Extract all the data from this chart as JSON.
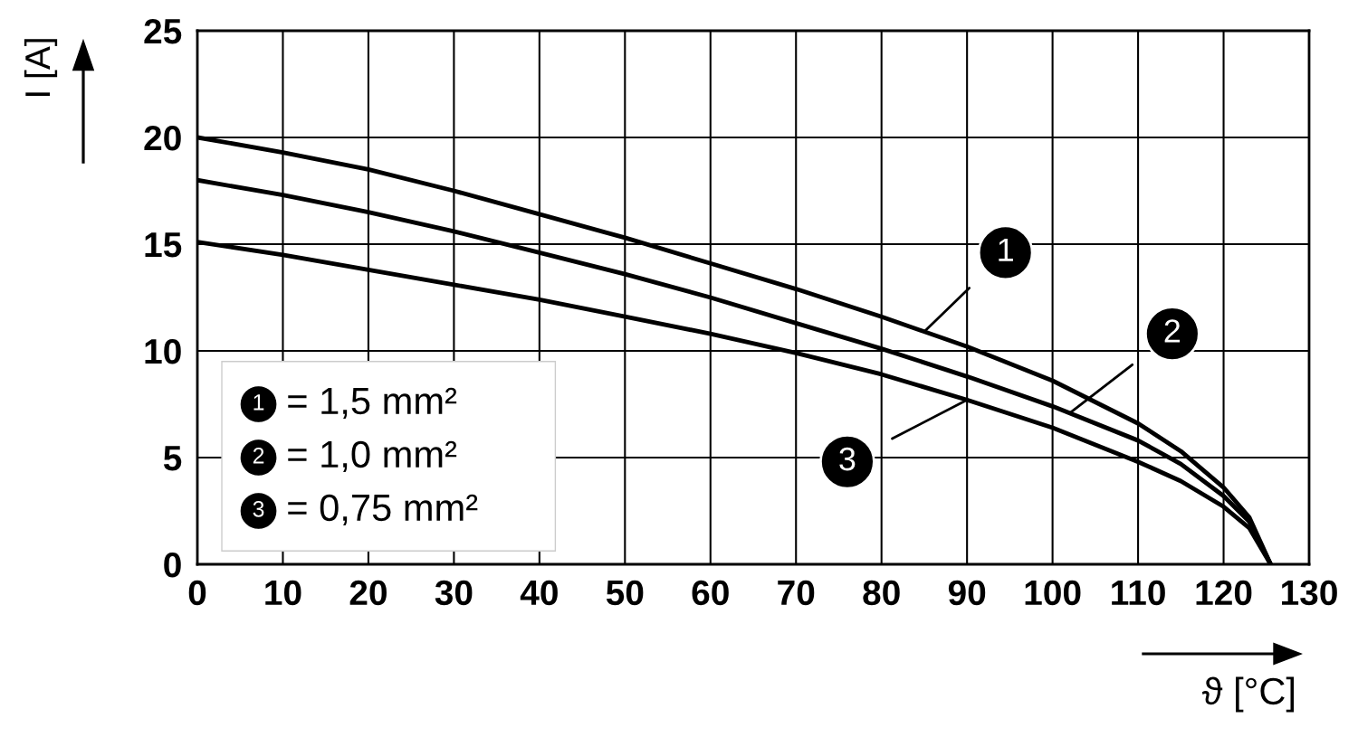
{
  "chart_data": {
    "type": "line",
    "xlabel": "ϑ [°C]",
    "ylabel": "I [A]",
    "xlim": [
      0,
      130
    ],
    "ylim": [
      0,
      25
    ],
    "xticks": [
      0,
      10,
      20,
      30,
      40,
      50,
      60,
      70,
      80,
      90,
      100,
      110,
      120,
      130
    ],
    "yticks": [
      0,
      5,
      10,
      15,
      20,
      25
    ],
    "grid": true,
    "legend": "bottom left",
    "marker": "none",
    "line_style": "solid",
    "series": [
      {
        "name": "1",
        "color": "#000000",
        "x": [
          0,
          10,
          20,
          30,
          40,
          50,
          60,
          70,
          80,
          90,
          100,
          110,
          115,
          120,
          123,
          125.5
        ],
        "values": [
          20,
          19.3,
          18.5,
          17.5,
          16.4,
          15.3,
          14.1,
          12.9,
          11.6,
          10.2,
          8.6,
          6.6,
          5.3,
          3.6,
          2.2,
          0
        ]
      },
      {
        "name": "2",
        "color": "#000000",
        "x": [
          0,
          10,
          20,
          30,
          40,
          50,
          60,
          70,
          80,
          90,
          100,
          110,
          115,
          120,
          123,
          125.5
        ],
        "values": [
          18,
          17.3,
          16.5,
          15.6,
          14.6,
          13.6,
          12.5,
          11.3,
          10.1,
          8.8,
          7.4,
          5.8,
          4.7,
          3.2,
          2.0,
          0
        ]
      },
      {
        "name": "3",
        "color": "#000000",
        "x": [
          0,
          10,
          20,
          30,
          40,
          50,
          60,
          70,
          80,
          90,
          100,
          110,
          115,
          120,
          123,
          125.5
        ],
        "values": [
          15.1,
          14.5,
          13.8,
          13.1,
          12.4,
          11.6,
          10.8,
          9.9,
          8.9,
          7.7,
          6.4,
          4.8,
          3.9,
          2.7,
          1.7,
          0
        ]
      }
    ],
    "annotations": [
      "= 1,5 mm²",
      "= 1,0 mm²",
      "= 0,75 mm²"
    ]
  }
}
